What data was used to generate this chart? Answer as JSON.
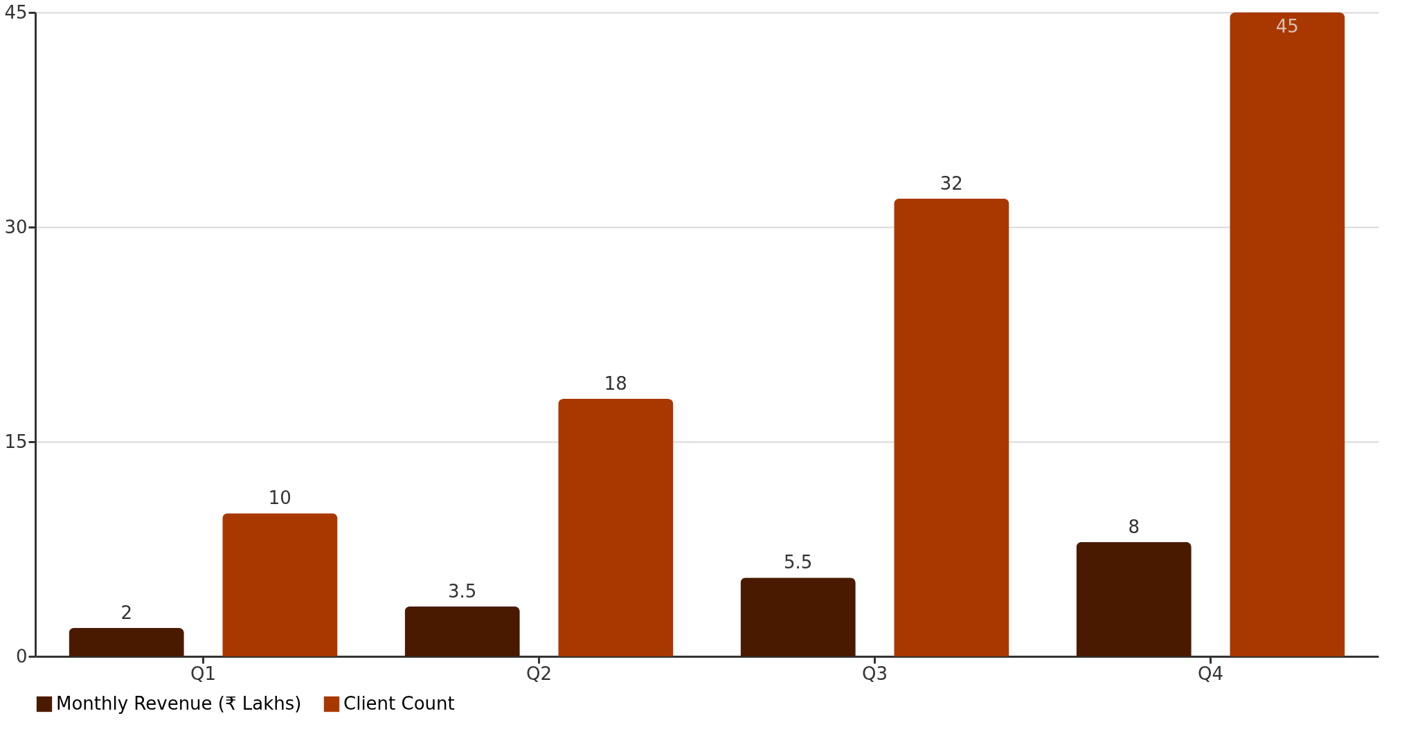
{
  "chart_data": {
    "type": "bar",
    "categories": [
      "Q1",
      "Q2",
      "Q3",
      "Q4"
    ],
    "series": [
      {
        "name": "Monthly Revenue (₹ Lakhs)",
        "color": "#4a1a00",
        "values": [
          2,
          3.5,
          5.5,
          8
        ]
      },
      {
        "name": "Client Count",
        "color": "#a83800",
        "values": [
          10,
          18,
          32,
          45
        ]
      }
    ],
    "ylim": [
      0,
      45
    ],
    "yticks": [
      0,
      15,
      30,
      45
    ],
    "grid": "y",
    "legend": "bottom",
    "data_labels": true
  }
}
